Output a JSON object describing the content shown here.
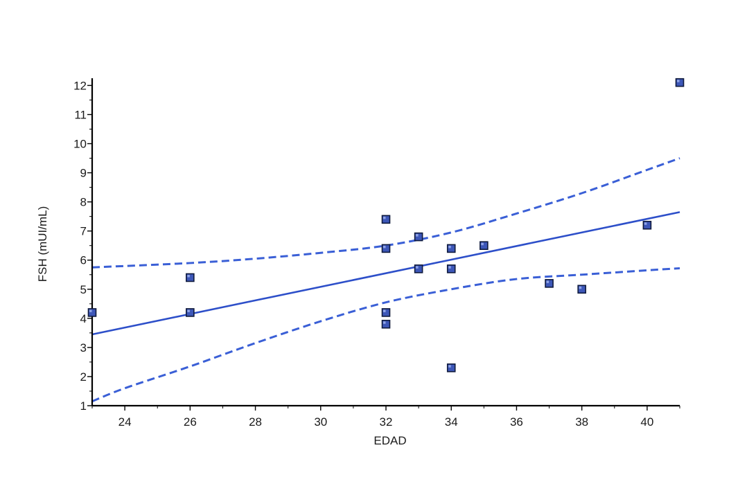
{
  "chart_data": {
    "type": "scatter",
    "title": "",
    "xlabel": "EDAD",
    "ylabel": "FSH (mUI/mL)",
    "xlim": [
      23,
      41
    ],
    "ylim": [
      1,
      12.2
    ],
    "x_ticks": [
      24,
      26,
      28,
      30,
      32,
      34,
      36,
      38,
      40
    ],
    "y_ticks": [
      1,
      2,
      3,
      4,
      5,
      6,
      7,
      8,
      9,
      10,
      11,
      12
    ],
    "grid": false,
    "legend": "none",
    "marker": "square",
    "colors": {
      "points": "#3d57b8",
      "fit_line": "#2d4fc9",
      "ci_line": "#3a5fd6",
      "axis": "#000000"
    },
    "points": [
      {
        "x": 23,
        "y": 4.2
      },
      {
        "x": 26,
        "y": 5.4
      },
      {
        "x": 26,
        "y": 4.2
      },
      {
        "x": 32,
        "y": 7.4
      },
      {
        "x": 32,
        "y": 6.4
      },
      {
        "x": 32,
        "y": 4.2
      },
      {
        "x": 32,
        "y": 3.8
      },
      {
        "x": 33,
        "y": 6.8
      },
      {
        "x": 33,
        "y": 5.7
      },
      {
        "x": 34,
        "y": 6.4
      },
      {
        "x": 34,
        "y": 5.7
      },
      {
        "x": 34,
        "y": 2.3
      },
      {
        "x": 35,
        "y": 6.5
      },
      {
        "x": 37,
        "y": 5.2
      },
      {
        "x": 38,
        "y": 5.0
      },
      {
        "x": 40,
        "y": 7.2
      },
      {
        "x": 41,
        "y": 12.1
      }
    ],
    "fit_line": [
      {
        "x": 23,
        "y": 3.45
      },
      {
        "x": 41,
        "y": 7.65
      }
    ],
    "ci_upper": [
      {
        "x": 23,
        "y": 5.75
      },
      {
        "x": 26,
        "y": 5.9
      },
      {
        "x": 28,
        "y": 6.05
      },
      {
        "x": 30,
        "y": 6.25
      },
      {
        "x": 32,
        "y": 6.5
      },
      {
        "x": 34,
        "y": 6.95
      },
      {
        "x": 36,
        "y": 7.6
      },
      {
        "x": 38,
        "y": 8.3
      },
      {
        "x": 40,
        "y": 9.1
      },
      {
        "x": 41,
        "y": 9.5
      }
    ],
    "ci_lower": [
      {
        "x": 23,
        "y": 1.15
      },
      {
        "x": 24,
        "y": 1.6
      },
      {
        "x": 26,
        "y": 2.35
      },
      {
        "x": 28,
        "y": 3.15
      },
      {
        "x": 30,
        "y": 3.9
      },
      {
        "x": 32,
        "y": 4.55
      },
      {
        "x": 34,
        "y": 5.0
      },
      {
        "x": 36,
        "y": 5.35
      },
      {
        "x": 38,
        "y": 5.5
      },
      {
        "x": 40,
        "y": 5.65
      },
      {
        "x": 41,
        "y": 5.72
      }
    ]
  }
}
